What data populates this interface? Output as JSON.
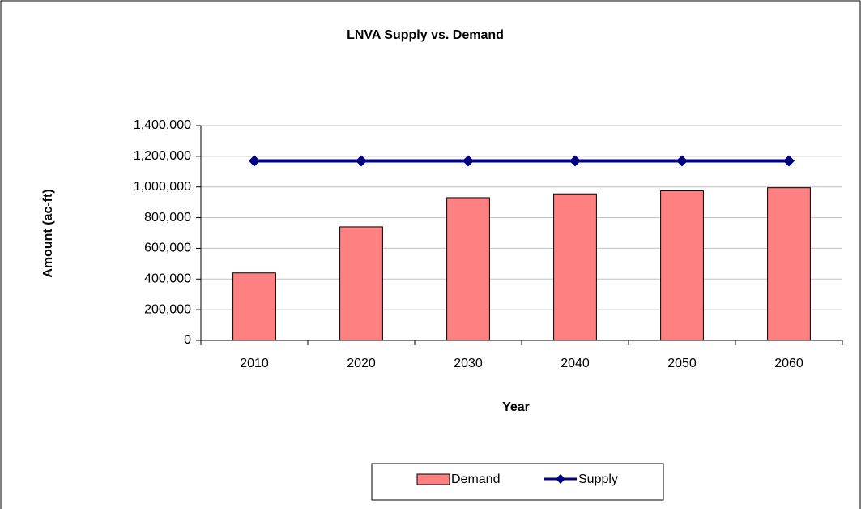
{
  "chart_data": {
    "type": "bar",
    "title": "LNVA Supply vs. Demand",
    "xlabel": "Year",
    "ylabel": "Amount (ac-ft)",
    "categories": [
      "2010",
      "2020",
      "2030",
      "2040",
      "2050",
      "2060"
    ],
    "series": [
      {
        "name": "Demand",
        "type": "bar",
        "color": "#ff8080",
        "values": [
          440000,
          740000,
          930000,
          955000,
          975000,
          995000
        ]
      },
      {
        "name": "Supply",
        "type": "line",
        "color": "#000080",
        "values": [
          1170000,
          1170000,
          1170000,
          1170000,
          1170000,
          1170000
        ]
      }
    ],
    "ylim": [
      0,
      1400000
    ],
    "yticks": [
      0,
      {
        "value": 200000,
        "label": "200,000"
      },
      {
        "value": 400000,
        "label": "400,000"
      },
      {
        "value": 600000,
        "label": "600,000"
      },
      {
        "value": 800000,
        "label": "800,000"
      },
      {
        "value": 1000000,
        "label": "1,000,000"
      },
      {
        "value": 1200000,
        "label": "1,200,000"
      },
      {
        "value": 1400000,
        "label": "1,400,000"
      }
    ],
    "grid": true,
    "legend": "bottom"
  }
}
